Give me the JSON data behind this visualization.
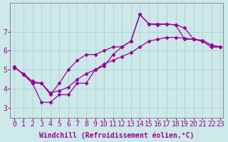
{
  "xlabel": "Windchill (Refroidissement éolien,°C)",
  "background_color": "#cce8e8",
  "line_color": "#990099",
  "grid_color": "#aacccc",
  "xlim": [
    -0.5,
    23.3
  ],
  "ylim": [
    2.5,
    8.5
  ],
  "xtick_labels": [
    "0",
    "1",
    "2",
    "3",
    "4",
    "5",
    "6",
    "7",
    "8",
    "9",
    "10",
    "11",
    "12",
    "13",
    "14",
    "15",
    "16",
    "17",
    "18",
    "19",
    "20",
    "21",
    "22",
    "23"
  ],
  "series1_x": [
    0,
    1,
    2,
    3,
    4,
    5,
    6,
    7,
    8,
    9,
    10,
    11,
    12,
    13,
    14,
    15,
    16,
    17,
    18,
    19,
    20,
    21,
    22,
    23
  ],
  "series1_y": [
    5.15,
    4.75,
    4.3,
    3.3,
    3.3,
    3.7,
    3.7,
    4.3,
    4.3,
    5.0,
    5.2,
    5.8,
    6.2,
    6.5,
    7.9,
    7.4,
    7.4,
    7.4,
    7.35,
    7.2,
    6.6,
    6.5,
    6.2,
    6.2
  ],
  "series2_x": [
    0,
    1,
    2,
    3,
    4,
    5,
    6,
    7,
    8,
    9,
    10,
    11,
    12,
    13,
    14,
    15,
    16,
    17,
    18,
    19,
    20,
    21,
    22,
    23
  ],
  "series2_y": [
    5.15,
    4.75,
    4.3,
    4.3,
    3.7,
    4.3,
    5.0,
    5.5,
    5.8,
    5.8,
    6.0,
    6.2,
    6.2,
    6.5,
    7.9,
    7.4,
    7.35,
    7.4,
    7.35,
    6.6,
    6.6,
    6.5,
    6.2,
    6.2
  ],
  "series3_x": [
    0,
    1,
    2,
    3,
    4,
    5,
    6,
    7,
    8,
    9,
    10,
    11,
    12,
    13,
    14,
    15,
    16,
    17,
    18,
    19,
    20,
    21,
    22,
    23
  ],
  "series3_y": [
    5.1,
    4.8,
    4.4,
    4.3,
    3.8,
    3.9,
    4.1,
    4.5,
    4.8,
    5.0,
    5.3,
    5.5,
    5.7,
    5.9,
    6.2,
    6.5,
    6.6,
    6.7,
    6.7,
    6.65,
    6.6,
    6.55,
    6.3,
    6.2
  ],
  "ytick_labels": [
    "3",
    "4",
    "5",
    "6",
    "7"
  ],
  "ytick_vals": [
    3,
    4,
    5,
    6,
    7
  ],
  "tick_label_fontsize": 7,
  "xlabel_fontsize": 7,
  "marker": "D",
  "marker_size": 2.5,
  "linewidth": 0.9
}
